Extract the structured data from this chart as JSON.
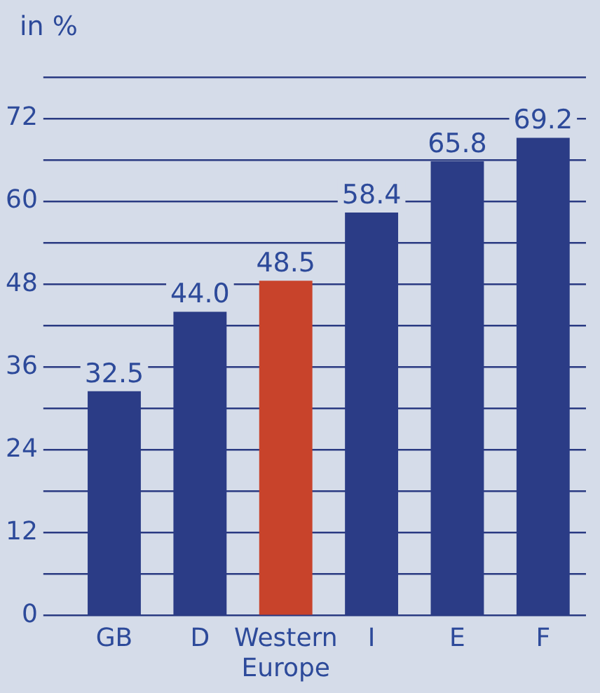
{
  "chart_data": {
    "type": "bar",
    "ylabel": "in %",
    "categories": [
      "GB",
      "D",
      "Western Europe",
      "I",
      "E",
      "F"
    ],
    "values": [
      32.5,
      44.0,
      48.5,
      58.4,
      65.8,
      69.2
    ],
    "colors": [
      "#2b3c86",
      "#2b3c86",
      "#c8432b",
      "#2b3c86",
      "#2b3c86",
      "#2b3c86"
    ],
    "value_labels": [
      "32.5",
      "44.0",
      "48.5",
      "58.4",
      "65.8",
      "69.2"
    ],
    "ylim": [
      0,
      78
    ],
    "yticks": [
      0,
      {
        "value": 6,
        "label": null
      },
      12,
      {
        "value": 18,
        "label": null
      },
      24,
      {
        "value": 30,
        "label": null
      },
      36,
      {
        "value": 42,
        "label": null
      },
      48,
      {
        "value": 54,
        "label": null
      },
      60,
      {
        "value": 66,
        "label": null
      },
      72,
      {
        "value": 78,
        "label": null
      }
    ],
    "grid": "y",
    "legend": false
  }
}
